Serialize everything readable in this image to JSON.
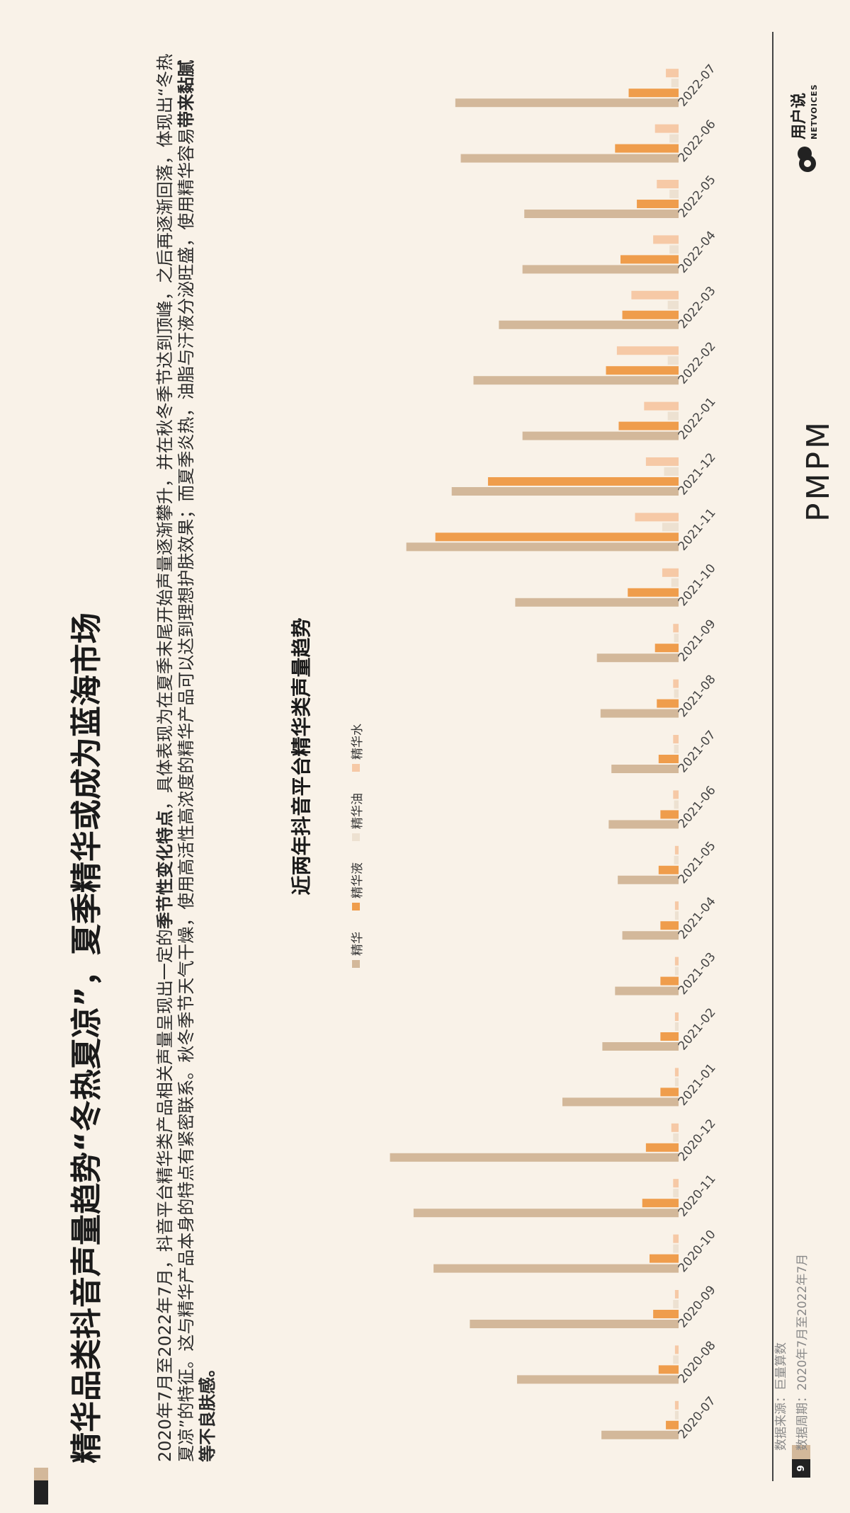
{
  "title": "精华品类抖音声量趋势“冬热夏凉”，夏季精华或成为蓝海市场",
  "body": {
    "p1": "2020年7月至2022年7月，抖音平台精华类产品相关声量呈现出一定的",
    "p1_bold": "季节性变化特点",
    "p1b": "，具体表现为在夏季末尾开始声量逐渐攀升，并在秋冬季节达到顶峰，之后再逐渐回落，体现出“冬热夏凉”的特征。这与精华产品本身的特点有紧密联系。秋冬季节天气干燥，使用高活性高浓度的精华产品可以达到理想护肤效果；而夏季炎热，油脂与汗液分泌旺盛，使用精华容易",
    "p1_bold2": "带来黏腻等不良肤感。"
  },
  "chart_title": "近两年抖音平台精华类声量趋势",
  "legend": [
    "精华",
    "精华液",
    "精华油",
    "精华水"
  ],
  "colors": {
    "精华": "#d3b89a",
    "精华液": "#ef9d4c",
    "精华油": "#ede1d1",
    "精华水": "#f6c9a6",
    "background": "#f9f2e8"
  },
  "chart_data": {
    "type": "bar",
    "categories": [
      "2020-07",
      "2020-08",
      "2020-09",
      "2020-10",
      "2020-11",
      "2020-12",
      "2021-01",
      "2021-02",
      "2021-03",
      "2021-04",
      "2021-05",
      "2021-06",
      "2021-07",
      "2021-08",
      "2021-09",
      "2021-10",
      "2021-11",
      "2021-12",
      "2022-01",
      "2022-02",
      "2022-03",
      "2022-04",
      "2022-05",
      "2022-06",
      "2022-07"
    ],
    "series": [
      {
        "name": "精华",
        "values": [
          85,
          178,
          230,
          270,
          292,
          318,
          128,
          84,
          70,
          62,
          67,
          77,
          74,
          86,
          90,
          180,
          300,
          250,
          172,
          226,
          198,
          172,
          170,
          240,
          246
        ]
      },
      {
        "name": "精华液",
        "values": [
          14,
          22,
          28,
          32,
          40,
          36,
          20,
          20,
          20,
          20,
          22,
          20,
          22,
          24,
          26,
          56,
          268,
          210,
          66,
          80,
          62,
          64,
          46,
          70,
          55
        ]
      },
      {
        "name": "精华油",
        "values": [
          4,
          6,
          6,
          6,
          6,
          6,
          4,
          4,
          4,
          4,
          5,
          5,
          5,
          5,
          5,
          8,
          18,
          16,
          12,
          12,
          12,
          10,
          10,
          10,
          8
        ]
      },
      {
        "name": "精华水",
        "values": [
          4,
          4,
          4,
          6,
          6,
          8,
          4,
          4,
          4,
          4,
          4,
          6,
          6,
          6,
          6,
          18,
          48,
          36,
          38,
          68,
          52,
          28,
          24,
          26,
          14
        ]
      }
    ],
    "ylim": [
      0,
      320
    ]
  },
  "brand": "PMPM",
  "logo": {
    "name": "用户说",
    "sub": "NETVOICES"
  },
  "page_number": "9",
  "source_lines": [
    "数据来源：巨量算数",
    "数据周期：2020年7月至2022年7月"
  ]
}
